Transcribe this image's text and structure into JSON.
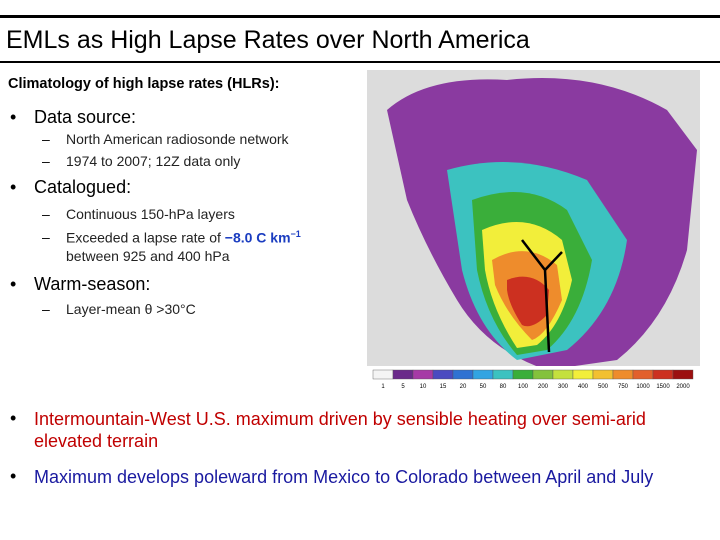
{
  "title": "EMLs as High Lapse Rates over North America",
  "subtitle": "Climatology of high lapse rates (HLRs):",
  "bullets": [
    {
      "text": "Data source:",
      "items": [
        "North American radiosonde network",
        "1974 to 2007; 12Z data only"
      ]
    },
    {
      "text": "Catalogued:",
      "items": [
        "Continuous 150-hPa layers"
      ],
      "rich_item": {
        "lead": "Exceeded a lapse rate of",
        "value": "−8.0 C km",
        "exponent": "−1",
        "tail": "between 925 and 400 hPa"
      }
    },
    {
      "text": "Warm-season:",
      "items": [
        "Layer-mean θ >30°C"
      ]
    }
  ],
  "conclusions": [
    {
      "text": "Intermountain-West U.S. maximum driven by sensible heating over semi-arid elevated terrain",
      "color": "#c00000"
    },
    {
      "text": "Maximum develops poleward from Mexico to Colorado between April and July",
      "color": "#1a1aa0"
    }
  ],
  "map": {
    "colorbar_labels": [
      1,
      5,
      10,
      15,
      20,
      50,
      80,
      100,
      200,
      300,
      400,
      500,
      750,
      1000,
      1500,
      2000
    ],
    "colors": [
      "#f4f4f4",
      "#6a2a8a",
      "#a63aa6",
      "#4a4ac0",
      "#2f72d2",
      "#32a4e2",
      "#3cc2c0",
      "#3aae3a",
      "#84c23c",
      "#c4e03e",
      "#f2ee3a",
      "#f2c030",
      "#ee8c2c",
      "#e2602c",
      "#cc3020",
      "#9c1010"
    ]
  }
}
